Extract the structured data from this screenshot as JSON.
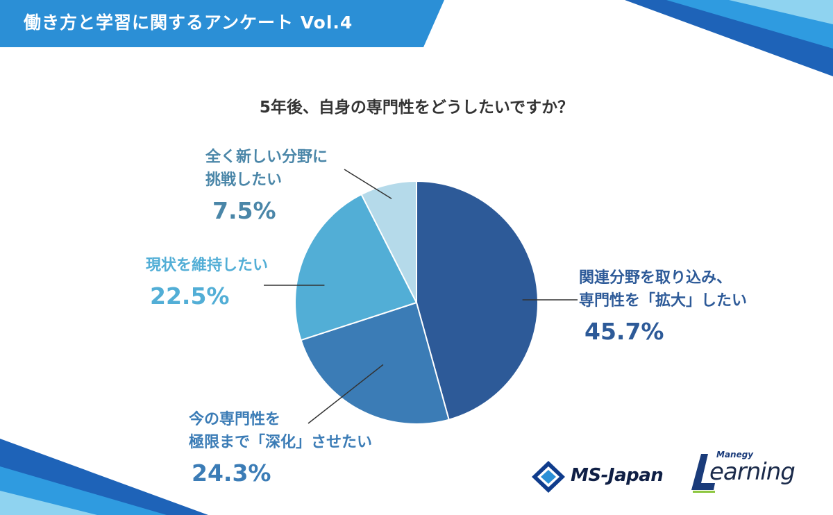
{
  "header": {
    "title": "働き方と学習に関するアンケート Vol.4"
  },
  "colors": {
    "banner": "#2b8fd6",
    "slice_expand": "#2d5a98",
    "slice_deepen": "#3b7cb6",
    "slice_maintain": "#52aed6",
    "slice_new": "#b5daea"
  },
  "chart_data": {
    "type": "pie",
    "title": "5年後、自身の専門性をどうしたいですか？",
    "slices": [
      {
        "label_line1": "関連分野を取り込み、",
        "label_line2": "専門性を「拡大」したい",
        "percent_label": "45.7%",
        "value": 45.7
      },
      {
        "label_line1": "今の専門性を",
        "label_line2": "極限まで「深化」させたい",
        "percent_label": "24.3%",
        "value": 24.3
      },
      {
        "label_line1": "現状を維持したい",
        "label_line2": "",
        "percent_label": "22.5%",
        "value": 22.5
      },
      {
        "label_line1": "全く新しい分野に",
        "label_line2": "挑戦したい",
        "percent_label": "7.5%",
        "value": 7.5
      }
    ]
  },
  "logos": {
    "ms_japan": "MS-Japan",
    "manegy_small": "Manegy",
    "learning": "earning"
  }
}
